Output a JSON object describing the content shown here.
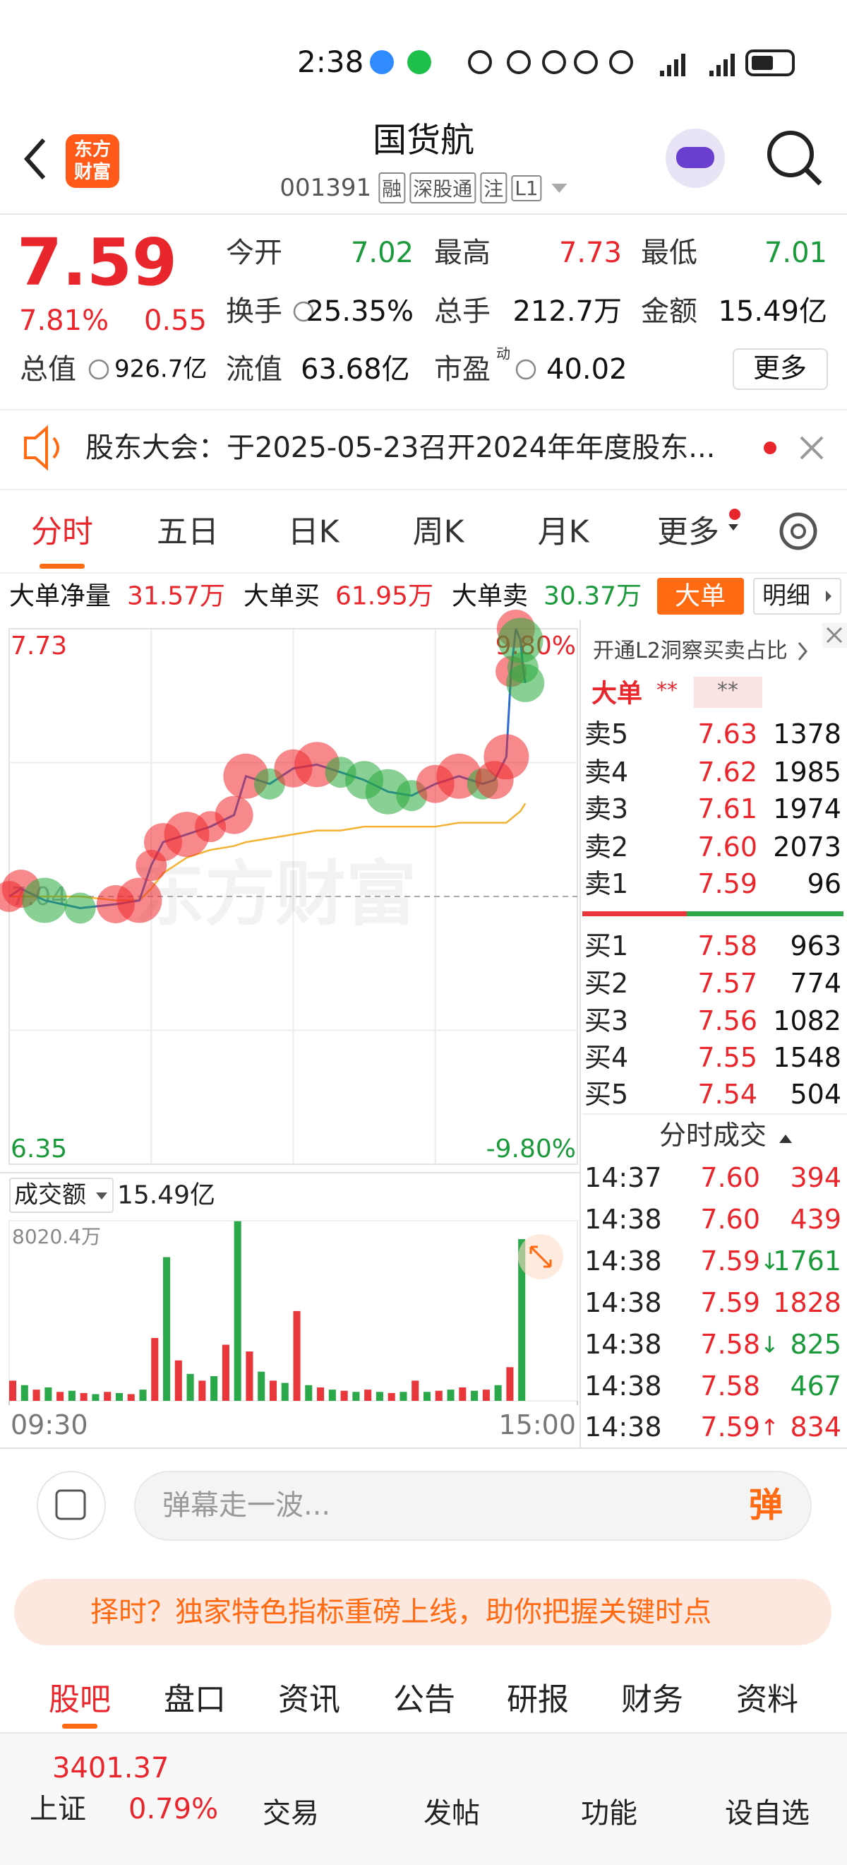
{
  "status_bar": {
    "time": "2:38"
  },
  "header": {
    "logo": [
      "东方",
      "财富"
    ],
    "title": "国货航",
    "code": "001391",
    "tags": [
      "融",
      "深股通",
      "注",
      "L1"
    ]
  },
  "quote": {
    "price": "7.59",
    "change_pct": "7.81%",
    "change": "0.55",
    "stats": [
      [
        {
          "label": "今开",
          "value": "7.02",
          "color": "#1a9a3a"
        },
        {
          "label": "最高",
          "value": "7.73",
          "color": "#e8262c"
        },
        {
          "label": "最低",
          "value": "7.01",
          "color": "#1a9a3a"
        }
      ],
      [
        {
          "label": "换手",
          "value": "25.35%"
        },
        {
          "label": "总手",
          "value": "212.7万"
        },
        {
          "label": "金额",
          "value": "15.49亿"
        }
      ],
      [
        {
          "label": "总值",
          "value": "926.7亿"
        },
        {
          "label": "流值",
          "value": "63.68亿"
        },
        {
          "label": "市盈",
          "sup": "动",
          "value": "40.02"
        }
      ]
    ],
    "more": "更多"
  },
  "notice": {
    "text": "股东大会：于2025-05-23召开2024年年度股东..."
  },
  "tabs": [
    "分时",
    "五日",
    "日K",
    "周K",
    "月K",
    "更多"
  ],
  "big_order": {
    "net_label": "大单净量",
    "net": "31.57万",
    "buy_label": "大单买",
    "buy": "61.95万",
    "sell_label": "大单卖",
    "sell": "30.37万",
    "button": "大单",
    "detail": "明细"
  },
  "watermark": "东方财富",
  "chart_data": [
    {
      "type": "line",
      "xlim": [
        0,
        240
      ],
      "ylim": [
        6.35,
        7.73
      ],
      "yticks": [
        7.73,
        7.04,
        6.35
      ],
      "y2lim": [
        -9.8,
        9.8
      ],
      "y2ticks": [
        {
          "value": 9.8,
          "label": "9.80%"
        },
        {
          "value": -9.8,
          "label": "-9.80%"
        }
      ],
      "grid": true,
      "x": [
        0,
        5,
        15,
        30,
        45,
        55,
        60,
        65,
        75,
        85,
        95,
        100,
        110,
        120,
        130,
        140,
        150,
        160,
        170,
        180,
        190,
        200,
        205,
        210,
        212,
        214,
        216,
        217,
        218
      ],
      "series": [
        {
          "color": "#2b6cd4",
          "values": [
            7.04,
            7.06,
            7.03,
            7.01,
            7.02,
            7.03,
            7.12,
            7.18,
            7.2,
            7.22,
            7.25,
            7.35,
            7.33,
            7.37,
            7.38,
            7.36,
            7.34,
            7.31,
            7.3,
            7.33,
            7.35,
            7.33,
            7.34,
            7.4,
            7.62,
            7.73,
            7.7,
            7.63,
            7.59
          ]
        },
        {
          "color": "#f2b233",
          "values": [
            7.04,
            7.04,
            7.04,
            7.04,
            7.03,
            7.03,
            7.06,
            7.1,
            7.14,
            7.16,
            7.17,
            7.18,
            7.19,
            7.2,
            7.21,
            7.21,
            7.22,
            7.22,
            7.22,
            7.22,
            7.23,
            7.23,
            7.23,
            7.23,
            7.24,
            7.25,
            7.26,
            7.27,
            7.28
          ]
        }
      ]
    },
    {
      "type": "bar",
      "title": "成交额",
      "total": "15.49亿",
      "xlim": [
        0,
        240
      ],
      "ylim": [
        0,
        8020.4
      ],
      "yticks": [
        {
          "value": 8020.4,
          "label": "8020.4万"
        }
      ],
      "xticks": [
        {
          "value": 0,
          "label": "09:30"
        },
        {
          "value": 240,
          "label": "15:00"
        }
      ],
      "x": [
        0,
        5,
        10,
        15,
        20,
        25,
        30,
        35,
        40,
        45,
        50,
        55,
        60,
        65,
        70,
        75,
        80,
        85,
        90,
        95,
        100,
        105,
        110,
        115,
        120,
        125,
        130,
        135,
        140,
        145,
        150,
        155,
        160,
        165,
        170,
        175,
        180,
        185,
        190,
        195,
        200,
        205,
        210,
        215
      ],
      "values": [
        900,
        700,
        500,
        600,
        400,
        450,
        350,
        300,
        400,
        350,
        300,
        500,
        2800,
        6400,
        1800,
        1200,
        900,
        1100,
        2500,
        8000,
        2200,
        1300,
        900,
        800,
        4000,
        700,
        600,
        500,
        450,
        400,
        500,
        400,
        350,
        400,
        900,
        400,
        450,
        500,
        600,
        450,
        500,
        700,
        1500,
        7200
      ]
    }
  ],
  "order_book": {
    "title": "开通L2洞察买卖占比",
    "big_label": "大单",
    "big_values": [
      "**",
      "**"
    ],
    "asks": [
      {
        "label": "卖5",
        "price": "7.63",
        "volume": "1378"
      },
      {
        "label": "卖4",
        "price": "7.62",
        "volume": "1985"
      },
      {
        "label": "卖3",
        "price": "7.61",
        "volume": "1974"
      },
      {
        "label": "卖2",
        "price": "7.60",
        "volume": "2073"
      },
      {
        "label": "卖1",
        "price": "7.59",
        "volume": "96"
      }
    ],
    "bids": [
      {
        "label": "买1",
        "price": "7.58",
        "volume": "963"
      },
      {
        "label": "买2",
        "price": "7.57",
        "volume": "774"
      },
      {
        "label": "买3",
        "price": "7.56",
        "volume": "1082"
      },
      {
        "label": "买4",
        "price": "7.55",
        "volume": "1548"
      },
      {
        "label": "买5",
        "price": "7.54",
        "volume": "504"
      }
    ]
  },
  "trades": {
    "title": "分时成交",
    "rows": [
      {
        "time": "14:37",
        "price": "7.60",
        "volume": "394",
        "color": "#e8262c"
      },
      {
        "time": "14:38",
        "price": "7.60",
        "volume": "439",
        "color": "#e8262c"
      },
      {
        "time": "14:38",
        "price": "7.59",
        "flag": "↓",
        "volume": "1761",
        "color": "#1a9a3a"
      },
      {
        "time": "14:38",
        "price": "7.59",
        "volume": "1828",
        "color": "#e8262c"
      },
      {
        "time": "14:38",
        "price": "7.58",
        "flag": "↓",
        "volume": "825",
        "color": "#1a9a3a"
      },
      {
        "time": "14:38",
        "price": "7.58",
        "volume": "467",
        "color": "#1a9a3a"
      },
      {
        "time": "14:38",
        "price": "7.59",
        "flag": "↑",
        "volume": "834",
        "color": "#e8262c"
      }
    ]
  },
  "comment": {
    "placeholder": "弹幕走一波...",
    "button": "弹"
  },
  "banner": {
    "text": "择时？独家特色指标重磅上线，助你把握关键时点"
  },
  "subtabs": [
    "股吧",
    "盘口",
    "资讯",
    "公告",
    "研报",
    "财务",
    "资料"
  ],
  "bottom_nav": {
    "index_value": "3401.37",
    "index_name": "上证",
    "index_change": "0.79%",
    "items": [
      "交易",
      "发帖",
      "功能",
      "设自选"
    ]
  }
}
